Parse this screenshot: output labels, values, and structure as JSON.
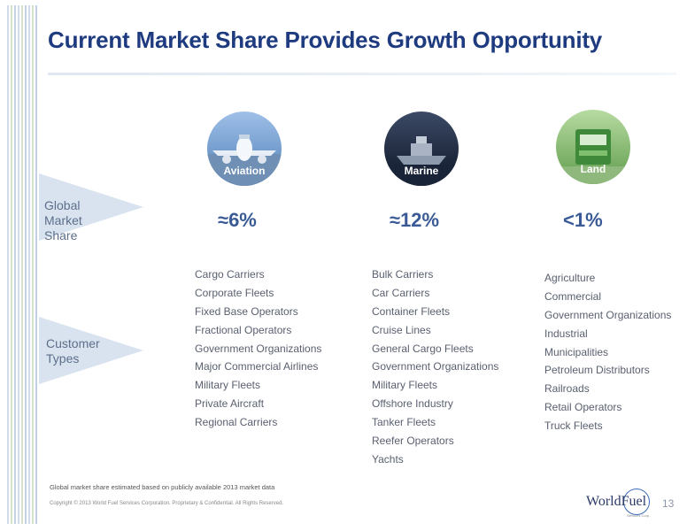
{
  "title": "Current Market Share Provides Growth Opportunity",
  "rows": {
    "market_share_label": [
      "Global",
      "Market",
      "Share"
    ],
    "customer_types_label": [
      "Customer",
      "Types"
    ]
  },
  "segments": [
    {
      "name": "Aviation",
      "icon": "airplane-icon",
      "share": "≈6%",
      "customers": [
        "Cargo Carriers",
        "Corporate Fleets",
        "Fixed Base Operators",
        "Fractional Operators",
        "Government Organizations",
        "Major Commercial Airlines",
        "Military Fleets",
        "Private Aircraft",
        "Regional Carriers"
      ]
    },
    {
      "name": "Marine",
      "icon": "ship-icon",
      "share": "≈12%",
      "customers": [
        "Bulk Carriers",
        "Car Carriers",
        "Container Fleets",
        "Cruise Lines",
        "General Cargo Fleets",
        "Government Organizations",
        "Military Fleets",
        "Offshore Industry",
        "Tanker Fleets",
        "Reefer Operators",
        "Yachts"
      ]
    },
    {
      "name": "Land",
      "icon": "truck-icon",
      "share": "<1%",
      "customers": [
        "Agriculture",
        "Commercial",
        "Government Organizations",
        "Industrial",
        "Municipalities",
        "Petroleum Distributors",
        "Railroads",
        "Retail Operators",
        "Truck Fleets"
      ]
    }
  ],
  "footnote": "Global market share estimated based on publicly available 2013 market data",
  "copyright": "Copyright © 2013 World Fuel Services Corporation. Proprietary & Confidential. All Rights Reserved.",
  "logo": {
    "name": "WorldFuel",
    "sub": "Services Corp."
  },
  "page_number": "13",
  "colors": {
    "title": "#1f3b80",
    "share": "#3a5a96",
    "arrow": "#d9e3f0"
  }
}
